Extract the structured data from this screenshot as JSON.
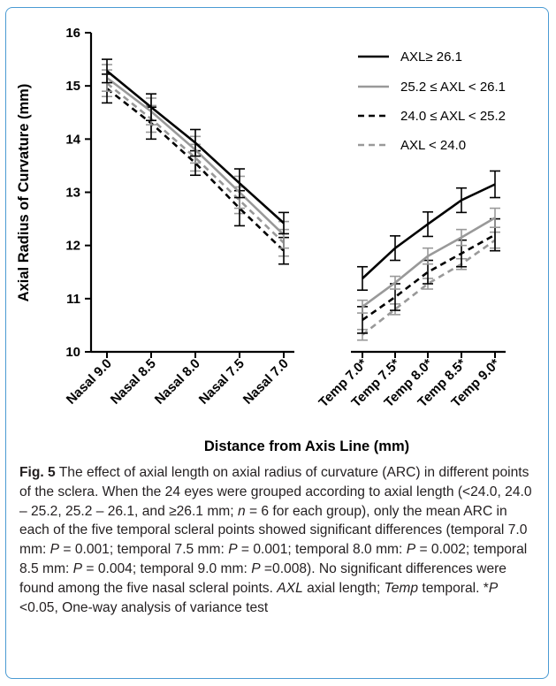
{
  "chart_data": {
    "type": "line",
    "xlabel": "Distance from Axis Line (mm)",
    "ylabel": "Axial Radius of Curvature (mm)",
    "ylim": [
      10,
      16
    ],
    "yticks": [
      "10",
      "11",
      "12",
      "13",
      "14",
      "15",
      "16"
    ],
    "categories": [
      "Nasal 9.0",
      "Nasal 8.5",
      "Nasal 8.0",
      "Nasal 7.5",
      "Nasal 7.0",
      "Temp 7.0*",
      "Temp 7.5*",
      "Temp 8.0*",
      "Temp 8.5*",
      "Temp 9.0*"
    ],
    "groups": [
      "nasal",
      "nasal",
      "nasal",
      "nasal",
      "nasal",
      "temporal",
      "temporal",
      "temporal",
      "temporal",
      "temporal"
    ],
    "legend_position": "top-right",
    "series": [
      {
        "name": "AXL≥ 26.1",
        "color": "#000000",
        "dash": "solid",
        "values": [
          15.28,
          14.6,
          13.93,
          13.17,
          12.42,
          11.38,
          11.95,
          12.4,
          12.85,
          13.15
        ],
        "errors": [
          0.22,
          0.25,
          0.25,
          0.27,
          0.2,
          0.22,
          0.23,
          0.23,
          0.23,
          0.25
        ]
      },
      {
        "name": "25.2 ≤ AXL < 26.1",
        "color": "#999999",
        "dash": "solid",
        "values": [
          15.15,
          14.52,
          13.8,
          13.0,
          12.2,
          10.85,
          11.3,
          11.8,
          12.15,
          12.52
        ],
        "errors": [
          0.25,
          0.25,
          0.25,
          0.3,
          0.25,
          0.12,
          0.12,
          0.15,
          0.15,
          0.18
        ]
      },
      {
        "name": "24.0 ≤ AXL < 25.2",
        "color": "#000000",
        "dash": "dashed",
        "values": [
          14.95,
          14.3,
          13.55,
          12.7,
          11.9,
          10.6,
          11.03,
          11.5,
          11.85,
          12.2
        ],
        "errors": [
          0.27,
          0.3,
          0.23,
          0.33,
          0.25,
          0.25,
          0.25,
          0.22,
          0.25,
          0.3
        ]
      },
      {
        "name": "AXL < 24.0",
        "color": "#999999",
        "dash": "dashed",
        "values": [
          15.05,
          14.38,
          13.65,
          12.85,
          12.05,
          10.32,
          10.8,
          11.28,
          11.65,
          12.1
        ],
        "errors": [
          0.25,
          0.25,
          0.25,
          0.25,
          0.25,
          0.1,
          0.1,
          0.1,
          0.1,
          0.15
        ]
      }
    ]
  },
  "caption": {
    "fig_label": "Fig. 5",
    "text_1": " The effect of axial length on axial radius of curvature (ARC) in different points of the sclera. When the 24 eyes were grouped according to axial length (<24.0, 24.0 – 25.2, 25.2 – 26.1, and ≥26.1 mm; ",
    "n_symbol": "n",
    "text_2": " = 6 for each group), only the mean ARC in each of the five temporal scleral points showed significant differences (temporal 7.0 mm: ",
    "p_symbol": "P",
    "p_1": " = 0.001; temporal 7.5 mm: ",
    "p_2": " = 0.001; temporal 8.0 mm: ",
    "p_3": " = 0.002; temporal 8.5 mm: ",
    "p_4": " = 0.004; temporal 9.0 mm: ",
    "p_5": " =0.008). No significant differences were found among the five nasal scleral points. ",
    "axl_abbr": "AXL",
    "axl_def": " axial length; ",
    "temp_abbr": "Temp",
    "temp_def": " temporal. *",
    "p_6": " <0.05, One-way analysis of variance test"
  }
}
